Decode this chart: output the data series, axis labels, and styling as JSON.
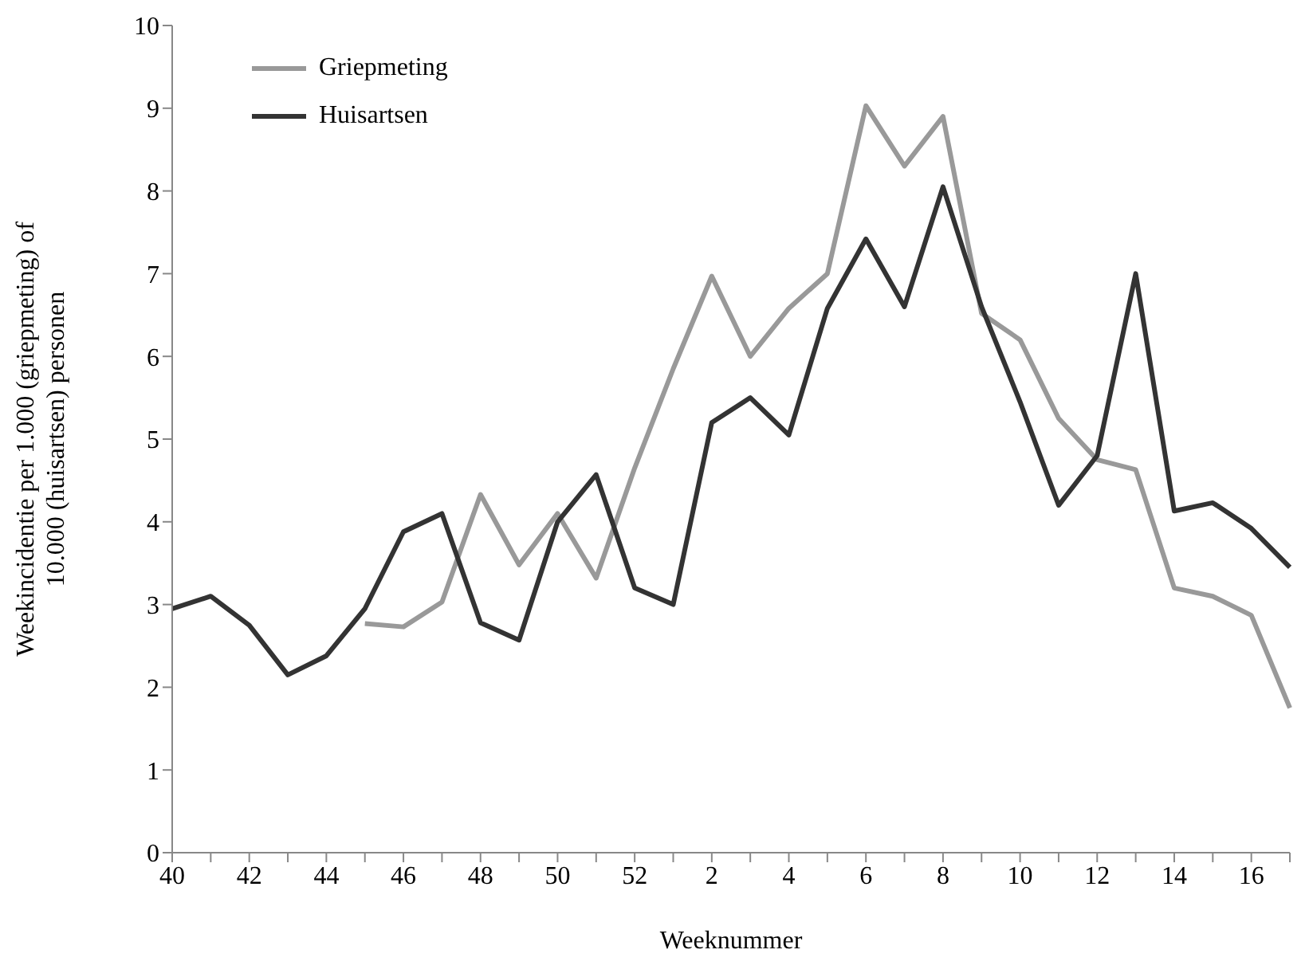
{
  "chart_data": {
    "type": "line",
    "xlabel": "Weeknummer",
    "ylabel": "Weekincidentie per 1.000 (griepmeting) of\n10.000 (huisartsen) personen",
    "categories": [
      "40",
      null,
      "42",
      null,
      "44",
      null,
      "46",
      null,
      "48",
      null,
      "50",
      null,
      "52",
      null,
      "2",
      null,
      "4",
      null,
      "6",
      null,
      "8",
      null,
      "10",
      null,
      "12",
      null,
      "14",
      null,
      "16",
      null
    ],
    "series": [
      {
        "name": "Griepmeting",
        "color": "#999999",
        "values": [
          null,
          null,
          null,
          null,
          null,
          2.77,
          2.73,
          3.03,
          4.33,
          3.48,
          4.1,
          3.32,
          4.65,
          5.85,
          6.97,
          6.0,
          6.58,
          7.0,
          9.03,
          8.3,
          8.9,
          6.52,
          6.2,
          5.25,
          4.75,
          4.63,
          3.2,
          3.1,
          2.87,
          1.75
        ]
      },
      {
        "name": "Huisartsen",
        "color": "#333333",
        "values": [
          2.95,
          3.1,
          2.75,
          2.15,
          2.38,
          2.95,
          3.88,
          4.1,
          2.78,
          2.57,
          4.0,
          4.57,
          3.2,
          3.0,
          5.2,
          5.5,
          5.05,
          6.58,
          7.42,
          6.6,
          8.05,
          6.6,
          5.45,
          4.2,
          4.8,
          7.0,
          4.13,
          4.23,
          3.92,
          3.45
        ]
      }
    ],
    "ylim": [
      0,
      10
    ],
    "yticks": [
      0,
      1,
      2,
      3,
      4,
      5,
      6,
      7,
      8,
      9,
      10
    ],
    "grid": false,
    "legend": "top left",
    "marker": "none",
    "line_style": "solid"
  }
}
